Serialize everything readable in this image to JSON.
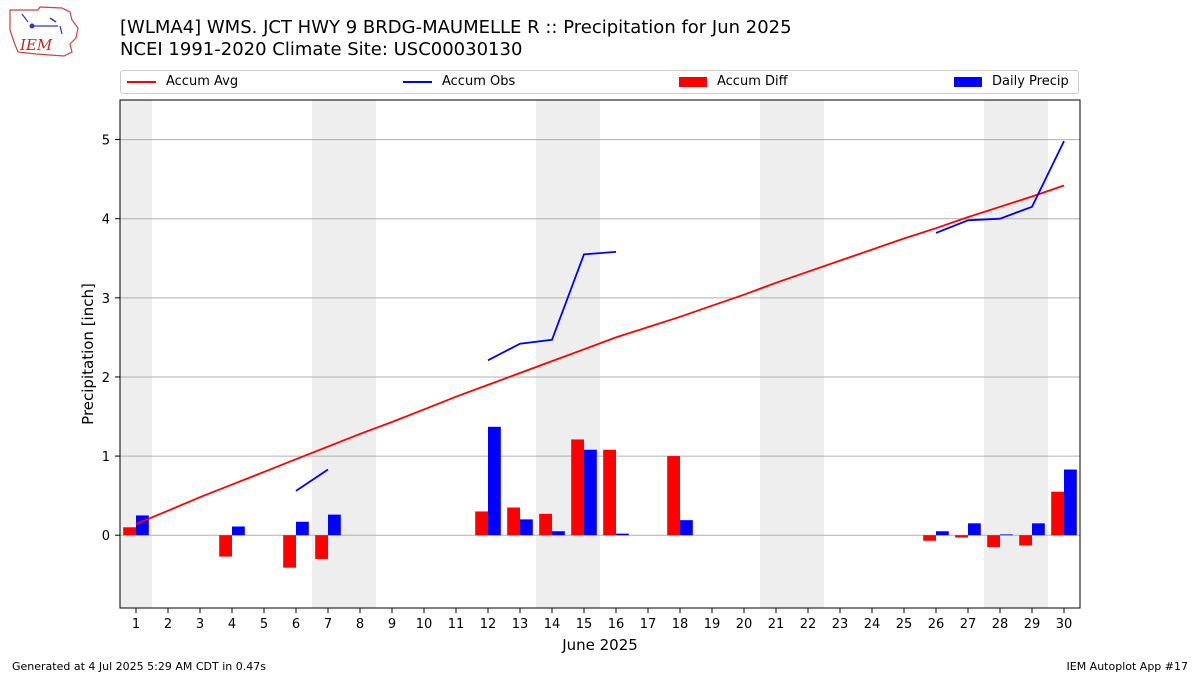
{
  "header": {
    "title_line1": "[WLMA4] WMS. JCT HWY 9 BRDG-MAUMELLE R :: Precipitation for Jun 2025",
    "title_line2": "NCEI 1991-2020 Climate Site: USC00030130",
    "logo_text": "IEM"
  },
  "footer": {
    "generated": "Generated at 4 Jul 2025 5:29 AM CDT in 0.47s",
    "app": "IEM Autoplot App #17"
  },
  "colors": {
    "accum_avg": "#ff0000",
    "accum_obs": "#0000ff",
    "accum_diff": "#ff0000",
    "daily_precip": "#0000ff",
    "weekend_shade": "#eeeeee",
    "grid": "#b0b0b0"
  },
  "chart_data": {
    "type": "bar",
    "title": "[WLMA4] WMS. JCT HWY 9 BRDG-MAUMELLE R :: Precipitation for Jun 2025",
    "xlabel": "June 2025",
    "ylabel": "Precipitation [inch]",
    "ylim": [
      -0.92,
      5.5
    ],
    "yticks": [
      0,
      1,
      2,
      3,
      4,
      5
    ],
    "grid": "horizontal",
    "legend_position": "top",
    "legend": [
      "Accum Avg",
      "Accum Obs",
      "Accum Diff",
      "Daily Precip"
    ],
    "days": [
      1,
      2,
      3,
      4,
      5,
      6,
      7,
      8,
      9,
      10,
      11,
      12,
      13,
      14,
      15,
      16,
      17,
      18,
      19,
      20,
      21,
      22,
      23,
      24,
      25,
      26,
      27,
      28,
      29,
      30
    ],
    "shaded_day_ranges": [
      [
        1,
        1
      ],
      [
        7,
        8
      ],
      [
        14,
        15
      ],
      [
        21,
        22
      ],
      [
        28,
        29
      ]
    ],
    "series": [
      {
        "name": "Accum Avg",
        "kind": "line",
        "color": "#ff0000",
        "values": [
          0.14,
          0.31,
          0.48,
          0.64,
          0.8,
          0.96,
          1.12,
          1.28,
          1.43,
          1.59,
          1.75,
          1.9,
          2.05,
          2.2,
          2.35,
          2.5,
          2.63,
          2.76,
          2.9,
          3.04,
          3.19,
          3.33,
          3.47,
          3.61,
          3.75,
          3.88,
          4.02,
          4.15,
          4.28,
          4.42
        ]
      },
      {
        "name": "Accum Obs",
        "kind": "line",
        "color": "#0000ff",
        "values": [
          null,
          null,
          null,
          null,
          null,
          0.56,
          0.83,
          null,
          null,
          null,
          null,
          2.21,
          2.42,
          2.47,
          3.55,
          3.58,
          null,
          null,
          null,
          null,
          null,
          null,
          null,
          null,
          null,
          3.82,
          3.98,
          4.0,
          4.15,
          4.98
        ]
      },
      {
        "name": "Accum Diff",
        "kind": "bar",
        "color": "#ff0000",
        "values": [
          0.1,
          null,
          null,
          -0.27,
          null,
          -0.41,
          -0.3,
          null,
          null,
          null,
          null,
          0.3,
          0.35,
          0.27,
          1.21,
          1.08,
          null,
          1.0,
          null,
          null,
          null,
          null,
          null,
          null,
          null,
          -0.07,
          -0.03,
          -0.15,
          -0.13,
          0.55
        ]
      },
      {
        "name": "Daily Precip",
        "kind": "bar",
        "color": "#0000ff",
        "values": [
          0.25,
          null,
          null,
          0.11,
          null,
          0.17,
          0.26,
          null,
          null,
          null,
          null,
          1.37,
          0.2,
          0.05,
          1.08,
          0.02,
          null,
          0.19,
          null,
          null,
          null,
          null,
          null,
          null,
          null,
          0.05,
          0.15,
          0.01,
          0.15,
          0.83
        ]
      }
    ]
  }
}
